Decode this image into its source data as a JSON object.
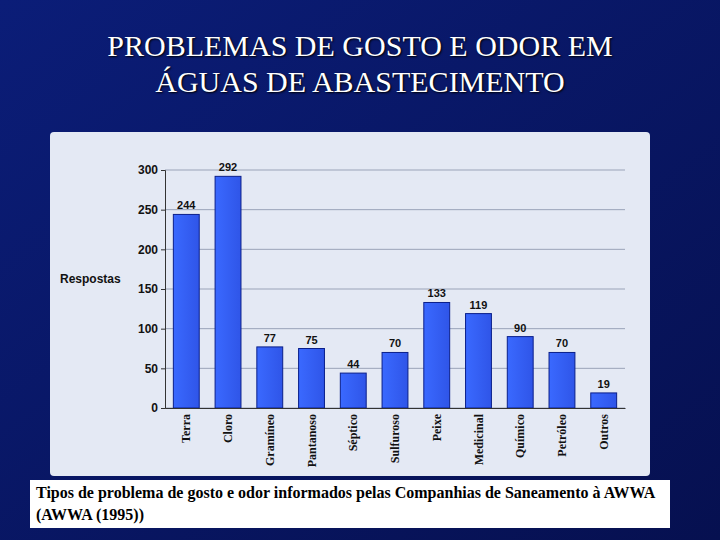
{
  "chart_data": {
    "type": "bar",
    "title": "PROBLEMAS DE GOSTO E ODOR EM ÁGUAS DE ABASTECIMENTO",
    "caption": "Tipos de problema de gosto e odor informados pelas Companhias de Saneamento à AWWA (AWWA (1995))",
    "y_label": "Respostas",
    "categories": [
      "Terra",
      "Cloro",
      "Gramíneo",
      "Pantanoso",
      "Séptico",
      "Sulfuroso",
      "Peixe",
      "Medicinal",
      "Químico",
      "Petróleo",
      "Outros"
    ],
    "values": [
      244,
      292,
      77,
      75,
      44,
      70,
      133,
      119,
      90,
      70,
      19
    ],
    "color": "#2f55e8",
    "ylim": [
      0,
      300
    ],
    "yticks": [
      0,
      50,
      100,
      150,
      200,
      250,
      300
    ],
    "grid": true,
    "data_labels": true
  }
}
